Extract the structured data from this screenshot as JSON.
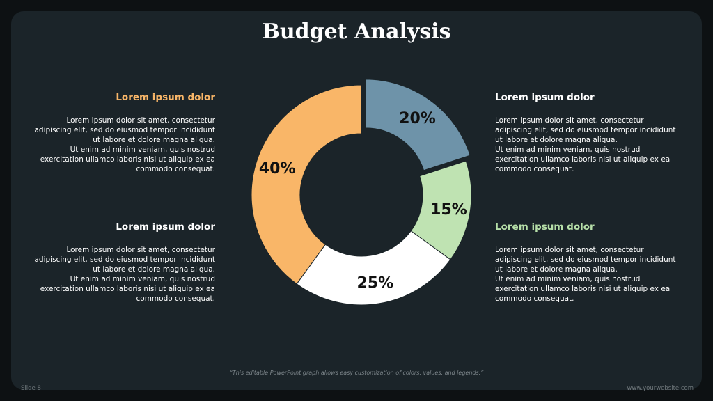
{
  "title": "Budget Analysis",
  "blocks": [
    {
      "heading": "Lorem ipsum dolor",
      "lines": [
        "Lorem ipsum dolor sit amet, consectetur",
        "adipiscing elit, sed do eiusmod tempor incididunt",
        "ut labore et dolore magna aliqua.",
        "Ut enim ad minim veniam, quis nostrud",
        "exercitation ullamco laboris nisi ut aliquip ex ea",
        "commodo consequat."
      ]
    },
    {
      "heading": "Lorem ipsum dolor",
      "lines": [
        "Lorem ipsum dolor sit amet, consectetur",
        "adipiscing elit, sed do eiusmod tempor incididunt",
        "ut labore et dolore magna aliqua.",
        "Ut enim ad minim veniam, quis nostrud",
        "exercitation ullamco laboris nisi ut aliquip ex ea",
        "commodo consequat."
      ]
    },
    {
      "heading": "Lorem ipsum dolor",
      "lines": [
        "Lorem ipsum dolor sit amet, consectetur",
        "adipiscing elit, sed do eiusmod tempor incididunt",
        "ut labore et dolore magna aliqua.",
        "Ut enim ad minim veniam, quis nostrud",
        "exercitation ullamco laboris nisi ut aliquip ex ea",
        "commodo consequat."
      ]
    },
    {
      "heading": "Lorem ipsum dolor",
      "lines": [
        "Lorem ipsum dolor sit amet, consectetur",
        "adipiscing elit, sed do eiusmod tempor incididunt",
        "ut labore et dolore magna aliqua.",
        "Ut enim ad minim veniam, quis nostrud",
        "exercitation ullamco laboris nisi ut aliquip ex ea",
        "commodo consequat."
      ]
    }
  ],
  "chart_data": {
    "type": "pie",
    "donut": true,
    "labels": [
      "20%",
      "15%",
      "25%",
      "40%"
    ],
    "values": [
      20,
      15,
      25,
      40
    ],
    "colors": [
      "#6e93a9",
      "#bfe3b2",
      "#ffffff",
      "#f9b668"
    ],
    "exploded": [
      true,
      false,
      false,
      false
    ]
  },
  "footnote": "“This editable PowerPoint graph allows easy customization of colors, values, and legends.”",
  "slide_number": "Slide 8",
  "website": "www.yourwebsite.com"
}
